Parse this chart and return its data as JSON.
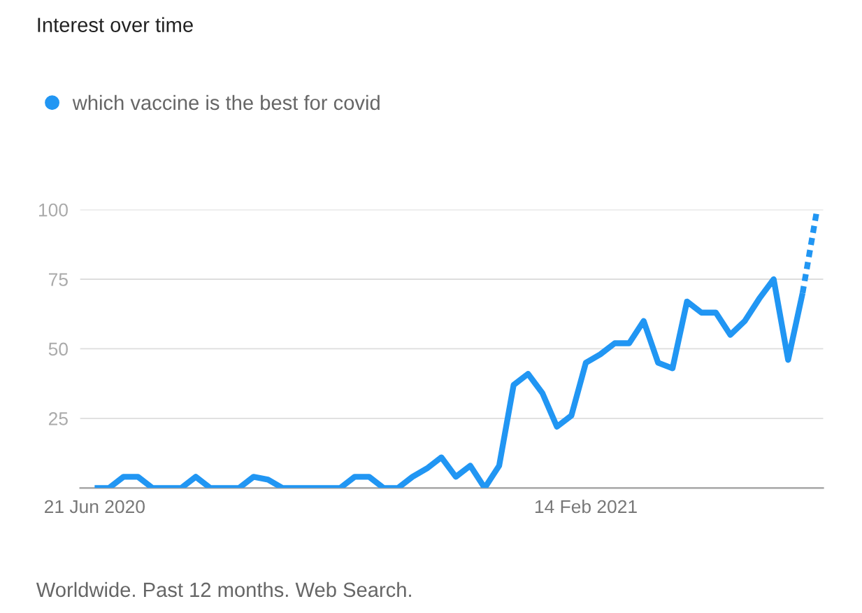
{
  "chart_data": {
    "type": "line",
    "title": "Interest over time",
    "series": [
      {
        "name": "which vaccine is the best for covid",
        "color": "#2196f3",
        "line_style": "solid",
        "x": [
          "2020-06-21",
          "2020-06-28",
          "2020-07-05",
          "2020-07-12",
          "2020-07-19",
          "2020-07-26",
          "2020-08-02",
          "2020-08-09",
          "2020-08-16",
          "2020-08-23",
          "2020-08-30",
          "2020-09-06",
          "2020-09-13",
          "2020-09-20",
          "2020-09-27",
          "2020-10-04",
          "2020-10-11",
          "2020-10-18",
          "2020-10-25",
          "2020-11-01",
          "2020-11-08",
          "2020-11-15",
          "2020-11-22",
          "2020-11-29",
          "2020-12-06",
          "2020-12-13",
          "2020-12-20",
          "2020-12-27",
          "2021-01-03",
          "2021-01-10",
          "2021-01-17",
          "2021-01-24",
          "2021-01-31",
          "2021-02-07",
          "2021-02-14",
          "2021-02-21",
          "2021-02-28",
          "2021-03-07",
          "2021-03-14",
          "2021-03-21",
          "2021-03-28",
          "2021-04-04",
          "2021-04-11",
          "2021-04-18",
          "2021-04-25",
          "2021-05-02",
          "2021-05-09",
          "2021-05-16",
          "2021-05-23",
          "2021-05-30"
        ],
        "values": [
          0,
          0,
          4,
          4,
          0,
          0,
          0,
          4,
          0,
          0,
          0,
          4,
          3,
          0,
          0,
          0,
          0,
          0,
          4,
          4,
          0,
          0,
          4,
          7,
          11,
          4,
          8,
          0,
          8,
          37,
          41,
          34,
          22,
          26,
          45,
          48,
          52,
          52,
          60,
          45,
          43,
          67,
          63,
          63,
          55,
          60,
          68,
          75,
          46,
          70
        ]
      },
      {
        "color": "#2196f3",
        "line_style": "dotted",
        "x": [
          "2021-05-30",
          "2021-06-06"
        ],
        "values": [
          70,
          100
        ]
      }
    ],
    "xlim": [
      "2020-06-14",
      "2021-06-09"
    ],
    "xticks": [
      {
        "value": "2020-06-21",
        "label": "21 Jun 2020"
      },
      {
        "value": "2021-02-14",
        "label": "14 Feb 2021"
      }
    ],
    "ylim": [
      0,
      100
    ],
    "yticks": [
      25,
      50,
      75,
      100
    ],
    "grid": "y",
    "legend": "top left",
    "marker": "none",
    "annotations": [
      "Worldwide. Past 12 months. Web Search."
    ]
  }
}
